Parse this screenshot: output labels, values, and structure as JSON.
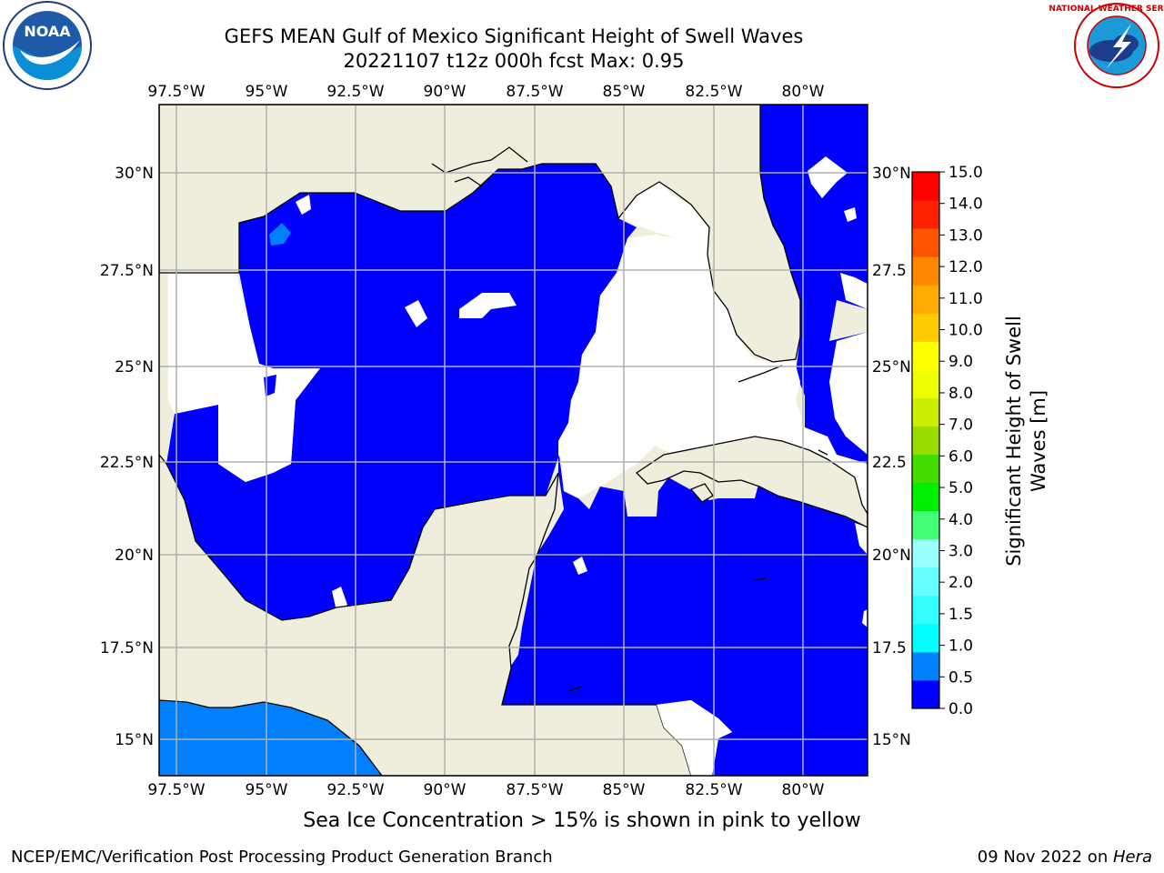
{
  "title": {
    "line1": "GEFS MEAN Gulf of Mexico Significant Height of Swell Waves",
    "line2": "20221107 t12z 000h fcst   Max: 0.95"
  },
  "caption": "Sea Ice Concentration > 15% is shown in pink to yellow",
  "footer": {
    "left": "NCEP/EMC/Verification Post Processing Product Generation Branch",
    "right_prefix": "09 Nov 2022 on ",
    "right_host": "Hera"
  },
  "logos": {
    "noaa": {
      "text": "NOAA",
      "ring_text": "NATIONAL OCEANIC AND ATMOSPHERIC ADMINISTRATION",
      "ring_text_bottom": "U.S. DEPARTMENT OF COMMERCE"
    },
    "nws": {
      "ring_text": "NATIONAL WEATHER SERVICE"
    }
  },
  "map": {
    "lon_ticks": [
      "97.5°W",
      "95°W",
      "92.5°W",
      "90°W",
      "87.5°W",
      "85°W",
      "82.5°W",
      "80°W"
    ],
    "lat_ticks": [
      "30°N",
      "27.5°N",
      "25°N",
      "22.5°N",
      "20°N",
      "17.5°N",
      "15°N"
    ],
    "lat_ticks_right": [
      "30°N",
      "27.5",
      "25°N",
      "22.5",
      "20°N",
      "17.5",
      "15°N"
    ],
    "lon_range": [
      -98,
      -78.2
    ],
    "lat_range": [
      14,
      31.8
    ],
    "colors": {
      "land": "#efeedc",
      "swell_low": "#0000ff",
      "swell_mid": "#0080ff",
      "no_data": "#ffffff",
      "grid": "#b0b0b0"
    }
  },
  "colorbar": {
    "label_line1": "Significant Height of Swell",
    "label_line2": "Waves [m]",
    "ticks": [
      "0.0",
      "0.5",
      "1.0",
      "1.5",
      "2.0",
      "3.0",
      "4.0",
      "5.0",
      "6.0",
      "7.0",
      "8.0",
      "9.0",
      "10.0",
      "11.0",
      "12.0",
      "13.0",
      "14.0",
      "15.0"
    ],
    "colors": [
      "#0000ff",
      "#0080ff",
      "#00ffff",
      "#33ffff",
      "#66ffff",
      "#99ffff",
      "#44ff77",
      "#00ee00",
      "#44dd00",
      "#99dd00",
      "#ccee00",
      "#eeff00",
      "#ffff00",
      "#ffcc00",
      "#ffaa00",
      "#ff8800",
      "#ff5500",
      "#ff2200",
      "#ff0000"
    ]
  }
}
